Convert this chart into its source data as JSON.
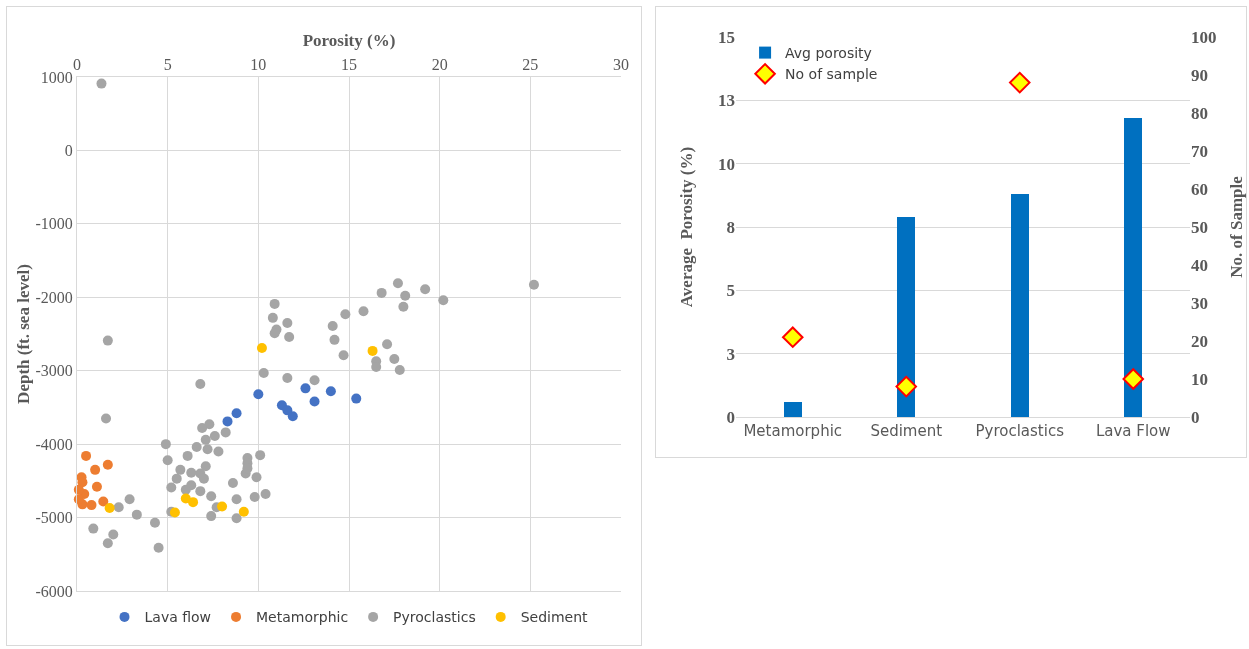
{
  "chart_data": [
    {
      "type": "scatter",
      "xlabel": "Porosity (%)",
      "ylabel": "Depth (ft. sea level)",
      "xlim": [
        0,
        30
      ],
      "xticks": [
        0,
        5,
        10,
        15,
        20,
        25,
        30
      ],
      "ylim": [
        -6000,
        1000
      ],
      "yticks": [
        -6000,
        -5000,
        -4000,
        -3000,
        -2000,
        -1000,
        0,
        1000
      ],
      "grid": true,
      "legend": "bottom",
      "marker": "circle",
      "series": [
        {
          "name": "Lava flow",
          "color": "#4472c4",
          "x": [
            10.0,
            8.3,
            8.8,
            11.3,
            11.6,
            11.9,
            12.6,
            13.1,
            14.0,
            15.4
          ],
          "values": [
            -3320,
            -3690,
            -3580,
            -3470,
            -3540,
            -3620,
            -3240,
            -3420,
            -3280,
            -3380
          ]
        },
        {
          "name": "Metamorphic",
          "color": "#ed7d31",
          "x": [
            0.5,
            1.7,
            1.0,
            0.25,
            0.3,
            1.1,
            0.4,
            0.3,
            0.8,
            1.45,
            0.1,
            0.1
          ],
          "values": [
            -4160,
            -4280,
            -4350,
            -4450,
            -4520,
            -4580,
            -4680,
            -4820,
            -4830,
            -4780,
            -4620,
            -4750
          ]
        },
        {
          "name": "Pyroclastics",
          "color": "#a5a5a5",
          "x": [
            1.35,
            1.7,
            1.6,
            10.9,
            10.8,
            11.6,
            11.0,
            10.9,
            11.7,
            10.3,
            11.6,
            6.8,
            4.9,
            10.1,
            9.4,
            5.0,
            7.3,
            6.9,
            8.2,
            7.6,
            7.1,
            6.6,
            7.2,
            7.8,
            6.1,
            7.1,
            5.7,
            6.3,
            6.8,
            5.5,
            7.0,
            8.6,
            9.3,
            9.9,
            5.2,
            6.3,
            6.8,
            7.4,
            8.8,
            9.8,
            10.4,
            2.9,
            2.3,
            3.3,
            5.2,
            7.4,
            8.8,
            4.3,
            0.9,
            2.0,
            1.7,
            4.5,
            6.0,
            7.7,
            9.4,
            9.4,
            17.7,
            16.8,
            18.1,
            19.2,
            20.2,
            18.0,
            25.2,
            15.8,
            14.8,
            14.1,
            14.2,
            14.7,
            17.1,
            17.5,
            17.8,
            16.5,
            16.5,
            13.1
          ],
          "values": [
            910,
            -2590,
            -3650,
            -2090,
            -2280,
            -2350,
            -2440,
            -2490,
            -2540,
            -3030,
            -3100,
            -3180,
            -4000,
            -4150,
            -4190,
            -4220,
            -3730,
            -3780,
            -3840,
            -3890,
            -3940,
            -4040,
            -4070,
            -4100,
            -4160,
            -4300,
            -4350,
            -4390,
            -4400,
            -4470,
            -4470,
            -4530,
            -4400,
            -4450,
            -4590,
            -4560,
            -4640,
            -4710,
            -4750,
            -4720,
            -4680,
            -4750,
            -4860,
            -4960,
            -4920,
            -4980,
            -5010,
            -5070,
            -5150,
            -5230,
            -5350,
            -5410,
            -4620,
            -4860,
            -4260,
            -4330,
            -1810,
            -1940,
            -1980,
            -1890,
            -2040,
            -2130,
            -1830,
            -2190,
            -2230,
            -2390,
            -2580,
            -2790,
            -2640,
            -2840,
            -2990,
            -2870,
            -2950,
            -3130
          ]
        },
        {
          "name": "Sediment",
          "color": "#ffc000",
          "x": [
            1.8,
            5.4,
            6.0,
            6.4,
            8.0,
            9.2,
            10.2,
            16.3
          ],
          "values": [
            -4870,
            -4930,
            -4740,
            -4790,
            -4850,
            -4920,
            -2690,
            -2730
          ]
        }
      ]
    },
    {
      "type": "bar",
      "categories": [
        "Metamorphic",
        "Sediment",
        "Pyroclastics",
        "Lava Flow"
      ],
      "ylabel": "Average  Porosity (%)",
      "y2label": "No. of Sample",
      "ylim": [
        0,
        15
      ],
      "yticks": [
        0,
        {
          "value": 2.5,
          "label": "3"
        },
        5,
        {
          "value": 7.5,
          "label": "8"
        },
        10,
        {
          "value": 12.5,
          "label": "13"
        },
        15
      ],
      "y2lim": [
        0,
        100
      ],
      "y2ticks": [
        0,
        10,
        20,
        30,
        40,
        50,
        60,
        70,
        80,
        90,
        100
      ],
      "grid": "y",
      "legend": "top left",
      "series": [
        {
          "name": "Avg porosity",
          "color": "#0070c0",
          "values": [
            0.6,
            7.9,
            8.8,
            11.8
          ]
        },
        {
          "name": "No of sample",
          "type": "scatter",
          "axis": "y2",
          "marker": "diamond",
          "color": "#ffff00",
          "values": [
            21,
            8,
            88,
            10
          ]
        }
      ]
    }
  ]
}
